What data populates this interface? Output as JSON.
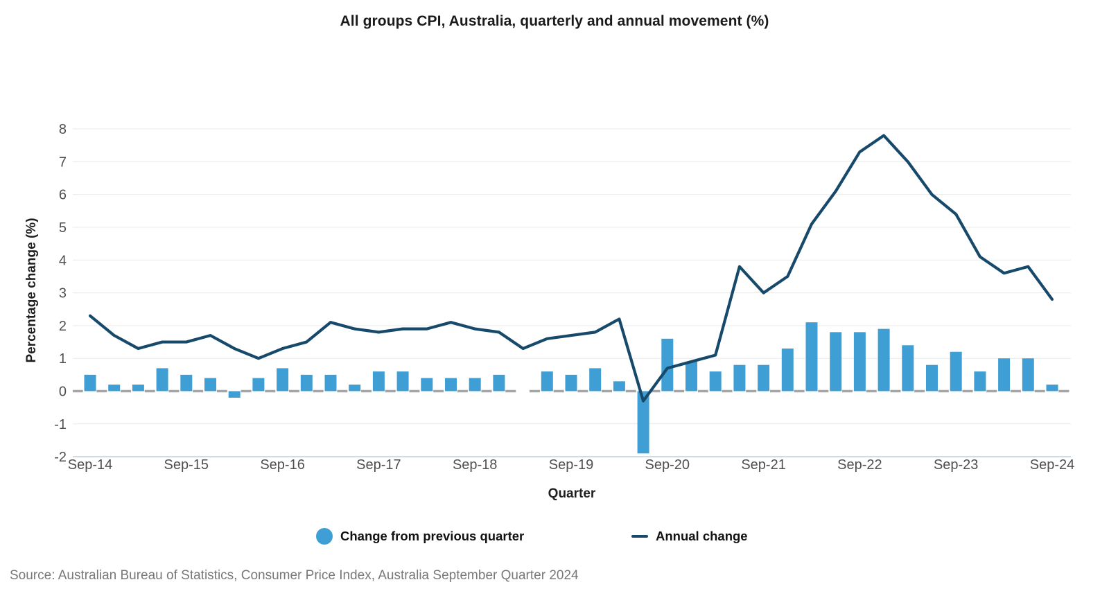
{
  "title": "All groups CPI, Australia, quarterly and annual movement (%)",
  "source_note": "Source: Australian Bureau of Statistics, Consumer Price Index, Australia September Quarter 2024",
  "legend": {
    "items": [
      {
        "label": "Change from previous quarter",
        "marker": "circle",
        "color": "#3f9fd5"
      },
      {
        "label": "Annual change",
        "marker": "line",
        "color": "#17496b"
      }
    ]
  },
  "chart_data": {
    "type": "combo (bar + line)",
    "title": "All groups CPI, Australia, quarterly and annual movement (%)",
    "xlabel": "Quarter",
    "ylabel": "Percentage change (%)",
    "ylim": [
      -2,
      8
    ],
    "yticks": [
      8,
      7,
      6,
      5,
      4,
      3,
      2,
      1,
      0,
      -1,
      -2
    ],
    "x_tick_labels": [
      "Sep-14",
      "Sep-15",
      "Sep-16",
      "Sep-17",
      "Sep-18",
      "Sep-19",
      "Sep-20",
      "Sep-21",
      "Sep-22",
      "Sep-23",
      "Sep-24"
    ],
    "grid": true,
    "legend_position": "bottom",
    "categories": [
      "Sep-14",
      "Dec-14",
      "Mar-15",
      "Jun-15",
      "Sep-15",
      "Dec-15",
      "Mar-16",
      "Jun-16",
      "Sep-16",
      "Dec-16",
      "Mar-17",
      "Jun-17",
      "Sep-17",
      "Dec-17",
      "Mar-18",
      "Jun-18",
      "Sep-18",
      "Dec-18",
      "Mar-19",
      "Jun-19",
      "Sep-19",
      "Dec-19",
      "Mar-20",
      "Jun-20",
      "Sep-20",
      "Dec-20",
      "Mar-21",
      "Jun-21",
      "Sep-21",
      "Dec-21",
      "Mar-22",
      "Jun-22",
      "Sep-22",
      "Dec-22",
      "Mar-23",
      "Jun-23",
      "Sep-23",
      "Dec-23",
      "Mar-24",
      "Jun-24",
      "Sep-24"
    ],
    "series": [
      {
        "name": "Change from previous quarter",
        "type": "bar",
        "color": "#3f9fd5",
        "values": [
          0.5,
          0.2,
          0.2,
          0.7,
          0.5,
          0.4,
          -0.2,
          0.4,
          0.7,
          0.5,
          0.5,
          0.2,
          0.6,
          0.6,
          0.4,
          0.4,
          0.4,
          0.5,
          0.0,
          0.6,
          0.5,
          0.7,
          0.3,
          -1.9,
          1.6,
          0.9,
          0.6,
          0.8,
          0.8,
          1.3,
          2.1,
          1.8,
          1.8,
          1.9,
          1.4,
          0.8,
          1.2,
          0.6,
          1.0,
          1.0,
          0.2
        ]
      },
      {
        "name": "Annual change",
        "type": "line",
        "color": "#17496b",
        "values": [
          2.3,
          1.7,
          1.3,
          1.5,
          1.5,
          1.7,
          1.3,
          1.0,
          1.3,
          1.5,
          2.1,
          1.9,
          1.8,
          1.9,
          1.9,
          2.1,
          1.9,
          1.8,
          1.3,
          1.6,
          1.7,
          1.8,
          2.2,
          -0.3,
          0.7,
          0.9,
          1.1,
          3.8,
          3.0,
          3.5,
          5.1,
          6.1,
          7.3,
          7.8,
          7.0,
          6.0,
          5.4,
          4.1,
          3.6,
          3.8,
          2.8
        ]
      }
    ],
    "style": {
      "grid_color": "#e9e9e9",
      "baseline_color": "#ccd7df",
      "zero_dash_color": "#a5a5a5",
      "tick_label_color": "#4f4f4f"
    }
  }
}
